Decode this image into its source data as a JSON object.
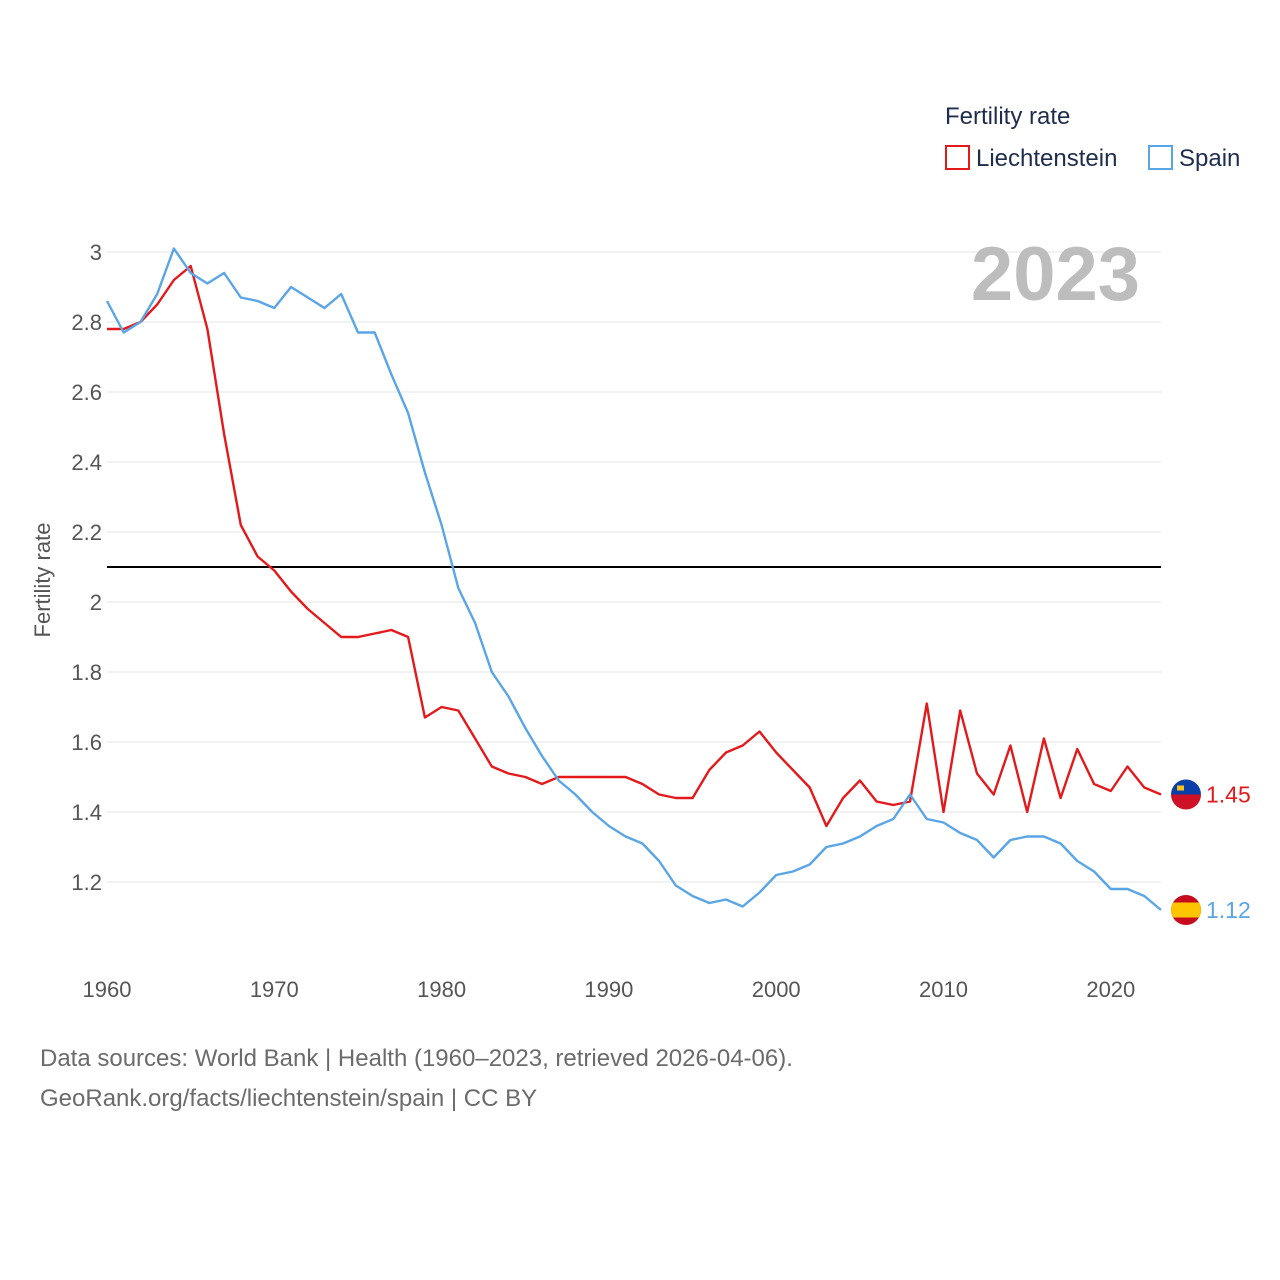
{
  "chart_data": {
    "type": "line",
    "title": "Fertility rate",
    "year_label": "2023",
    "ylabel": "Fertility rate",
    "xlabel": "",
    "xlim": [
      1960,
      2023
    ],
    "ylim": [
      1.0,
      3.0
    ],
    "grid": true,
    "legend_placement": "top-right",
    "x_ticks": [
      1960,
      1970,
      1980,
      1990,
      2000,
      2010,
      2020
    ],
    "y_ticks": [
      1.2,
      1.4,
      1.6,
      1.8,
      2,
      2.2,
      2.4,
      2.6,
      2.8,
      3
    ],
    "y_tick_labels": [
      "1.2",
      "1.4",
      "1.6",
      "1.8",
      "2",
      "2.2",
      "2.4",
      "2.6",
      "2.8",
      "3"
    ],
    "reference_line": {
      "value": 2.1,
      "color": "#000000"
    },
    "x": [
      1960,
      1961,
      1962,
      1963,
      1964,
      1965,
      1966,
      1967,
      1968,
      1969,
      1970,
      1971,
      1972,
      1973,
      1974,
      1975,
      1976,
      1977,
      1978,
      1979,
      1980,
      1981,
      1982,
      1983,
      1984,
      1985,
      1986,
      1987,
      1988,
      1989,
      1990,
      1991,
      1992,
      1993,
      1994,
      1995,
      1996,
      1997,
      1998,
      1999,
      2000,
      2001,
      2002,
      2003,
      2004,
      2005,
      2006,
      2007,
      2008,
      2009,
      2010,
      2011,
      2012,
      2013,
      2014,
      2015,
      2016,
      2017,
      2018,
      2019,
      2020,
      2021,
      2022,
      2023
    ],
    "series": [
      {
        "name": "Liechtenstein",
        "color": "#e31a1c",
        "end_label": "1.45",
        "flag": "liechtenstein-flag-icon",
        "values": [
          2.78,
          2.78,
          2.8,
          2.85,
          2.92,
          2.96,
          2.78,
          2.48,
          2.22,
          2.13,
          2.09,
          2.03,
          1.98,
          1.94,
          1.9,
          1.9,
          1.91,
          1.92,
          1.9,
          1.67,
          1.7,
          1.69,
          1.61,
          1.53,
          1.51,
          1.5,
          1.48,
          1.5,
          1.5,
          1.5,
          1.5,
          1.5,
          1.48,
          1.45,
          1.44,
          1.44,
          1.52,
          1.57,
          1.59,
          1.63,
          1.57,
          1.52,
          1.47,
          1.36,
          1.44,
          1.49,
          1.43,
          1.42,
          1.43,
          1.71,
          1.4,
          1.69,
          1.51,
          1.45,
          1.59,
          1.4,
          1.61,
          1.44,
          1.58,
          1.48,
          1.46,
          1.53,
          1.47,
          1.45
        ]
      },
      {
        "name": "Spain",
        "color": "#5aa5e6",
        "end_label": "1.12",
        "flag": "spain-flag-icon",
        "values": [
          2.86,
          2.77,
          2.8,
          2.88,
          3.01,
          2.94,
          2.91,
          2.94,
          2.87,
          2.86,
          2.84,
          2.9,
          2.87,
          2.84,
          2.88,
          2.77,
          2.77,
          2.65,
          2.54,
          2.37,
          2.22,
          2.04,
          1.94,
          1.8,
          1.73,
          1.64,
          1.56,
          1.49,
          1.45,
          1.4,
          1.36,
          1.33,
          1.31,
          1.26,
          1.19,
          1.16,
          1.14,
          1.15,
          1.13,
          1.17,
          1.22,
          1.23,
          1.25,
          1.3,
          1.31,
          1.33,
          1.36,
          1.38,
          1.45,
          1.38,
          1.37,
          1.34,
          1.32,
          1.27,
          1.32,
          1.33,
          1.33,
          1.31,
          1.26,
          1.23,
          1.18,
          1.18,
          1.16,
          1.12
        ]
      }
    ]
  },
  "footer": {
    "line1": "Data sources: World Bank | Health (1960–2023, retrieved 2026-04-06).",
    "line2": "GeoRank.org/facts/liechtenstein/spain | CC BY"
  }
}
